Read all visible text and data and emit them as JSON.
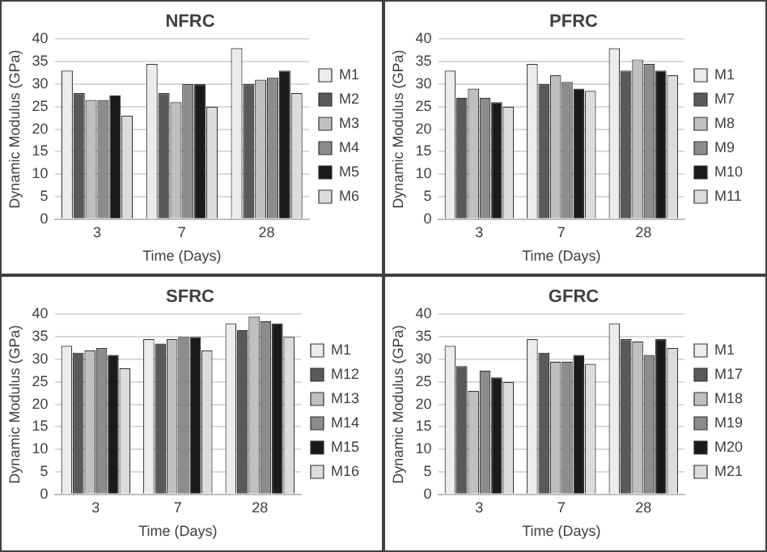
{
  "chart_data": [
    {
      "type": "bar",
      "title": "NFRC",
      "xlabel": "Time (Days)",
      "ylabel": "Dynamic Modulus (GPa)",
      "categories": [
        "3",
        "7",
        "28"
      ],
      "ylim": [
        0,
        40
      ],
      "yticks": [
        0,
        5,
        10,
        15,
        20,
        25,
        30,
        35,
        40
      ],
      "grid": "y",
      "legend": "right",
      "series": [
        {
          "name": "M1",
          "color": "#ececec",
          "values": [
            33,
            34.5,
            38
          ]
        },
        {
          "name": "M2",
          "color": "#595959",
          "values": [
            28,
            28,
            30
          ]
        },
        {
          "name": "M3",
          "color": "#bfbfbf",
          "values": [
            26.5,
            26,
            31
          ]
        },
        {
          "name": "M4",
          "color": "#8c8c8c",
          "values": [
            26.5,
            30,
            31.5
          ]
        },
        {
          "name": "M5",
          "color": "#1a1a1a",
          "values": [
            27.5,
            30,
            33
          ]
        },
        {
          "name": "M6",
          "color": "#dcdcdc",
          "values": [
            23,
            25,
            28
          ]
        }
      ]
    },
    {
      "type": "bar",
      "title": "PFRC",
      "xlabel": "Time (Days)",
      "ylabel": "Dynamic Modulus (GPa)",
      "categories": [
        "3",
        "7",
        "28"
      ],
      "ylim": [
        0,
        40
      ],
      "yticks": [
        0,
        5,
        10,
        15,
        20,
        25,
        30,
        35,
        40
      ],
      "grid": "y",
      "legend": "right",
      "series": [
        {
          "name": "M1",
          "color": "#ececec",
          "values": [
            33,
            34.5,
            38
          ]
        },
        {
          "name": "M7",
          "color": "#595959",
          "values": [
            27,
            30,
            33
          ]
        },
        {
          "name": "M8",
          "color": "#bfbfbf",
          "values": [
            29,
            32,
            35.5
          ]
        },
        {
          "name": "M9",
          "color": "#8c8c8c",
          "values": [
            27,
            30.5,
            34.5
          ]
        },
        {
          "name": "M10",
          "color": "#1a1a1a",
          "values": [
            26,
            29,
            33
          ]
        },
        {
          "name": "M11",
          "color": "#dcdcdc",
          "values": [
            25,
            28.5,
            32
          ]
        }
      ]
    },
    {
      "type": "bar",
      "title": "SFRC",
      "xlabel": "Time (Days)",
      "ylabel": "Dynamic Modulus (GPa)",
      "categories": [
        "3",
        "7",
        "28"
      ],
      "ylim": [
        0,
        40
      ],
      "yticks": [
        0,
        5,
        10,
        15,
        20,
        25,
        30,
        35,
        40
      ],
      "grid": "y",
      "legend": "right",
      "series": [
        {
          "name": "M1",
          "color": "#ececec",
          "values": [
            33,
            34.5,
            38
          ]
        },
        {
          "name": "M12",
          "color": "#595959",
          "values": [
            31.5,
            33.5,
            36.5
          ]
        },
        {
          "name": "M13",
          "color": "#bfbfbf",
          "values": [
            32,
            34.5,
            39.5
          ]
        },
        {
          "name": "M14",
          "color": "#8c8c8c",
          "values": [
            32.5,
            35,
            38.5
          ]
        },
        {
          "name": "M15",
          "color": "#1a1a1a",
          "values": [
            31,
            35,
            38
          ]
        },
        {
          "name": "M16",
          "color": "#dcdcdc",
          "values": [
            28,
            32,
            35
          ]
        }
      ]
    },
    {
      "type": "bar",
      "title": "GFRC",
      "xlabel": "Time (Days)",
      "ylabel": "Dynamic Modulus (GPa)",
      "categories": [
        "3",
        "7",
        "28"
      ],
      "ylim": [
        0,
        40
      ],
      "yticks": [
        0,
        5,
        10,
        15,
        20,
        25,
        30,
        35,
        40
      ],
      "grid": "y",
      "legend": "right",
      "series": [
        {
          "name": "M1",
          "color": "#ececec",
          "values": [
            33,
            34.5,
            38
          ]
        },
        {
          "name": "M17",
          "color": "#595959",
          "values": [
            28.5,
            31.5,
            34.5
          ]
        },
        {
          "name": "M18",
          "color": "#bfbfbf",
          "values": [
            23,
            29.5,
            34
          ]
        },
        {
          "name": "M19",
          "color": "#8c8c8c",
          "values": [
            27.5,
            29.5,
            31
          ]
        },
        {
          "name": "M20",
          "color": "#1a1a1a",
          "values": [
            26,
            31,
            34.5
          ]
        },
        {
          "name": "M21",
          "color": "#dcdcdc",
          "values": [
            25,
            29,
            32.5
          ]
        }
      ]
    }
  ]
}
